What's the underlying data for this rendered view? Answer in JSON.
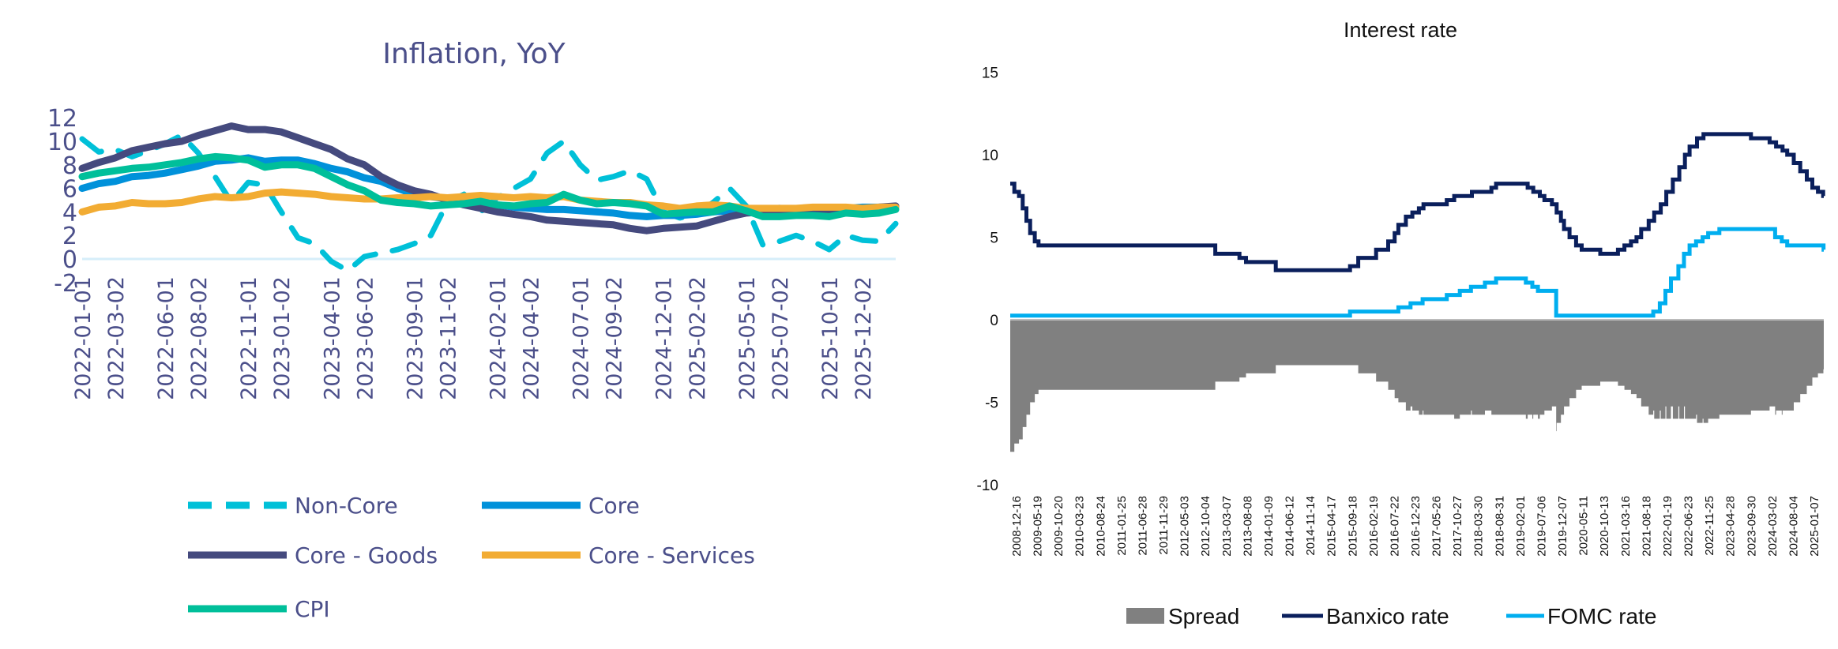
{
  "chart_data": [
    {
      "type": "line",
      "title": "Inflation, YoY",
      "xlabel": "",
      "ylabel": "",
      "ylim": [
        -2,
        12
      ],
      "yticks": [
        "12",
        "10",
        "8",
        "6",
        "4",
        "2",
        "0",
        "-2"
      ],
      "x_start": "2022-01",
      "x_tick_labels": [
        "2022-01-01",
        "2022-03-02",
        "2022-06-01",
        "2022-08-02",
        "2022-11-01",
        "2023-01-02",
        "2023-04-01",
        "2023-06-02",
        "2023-09-01",
        "2023-11-02",
        "2024-02-01",
        "2024-04-02",
        "2024-07-01",
        "2024-09-02",
        "2024-12-01",
        "2025-02-02",
        "2025-05-01",
        "2025-07-02",
        "2025-10-01",
        "2025-12-02"
      ],
      "legend_position": "bottom",
      "series": [
        {
          "name": "Non-Core",
          "color": "#00c0d8",
          "dashed": true,
          "values": [
            10.2,
            9.1,
            9.3,
            8.7,
            9.2,
            9.8,
            10.5,
            9.0,
            7.0,
            4.8,
            6.5,
            6.3,
            4.0,
            1.8,
            1.3,
            -0.2,
            -1.0,
            0.2,
            0.5,
            0.8,
            1.3,
            2.0,
            4.8,
            5.5,
            4.0,
            5.2,
            6.0,
            6.8,
            9.0,
            10.0,
            8.0,
            6.7,
            7.0,
            7.5,
            6.8,
            4.0,
            3.5,
            3.8,
            4.8,
            6.0,
            4.5,
            1.2,
            1.5,
            2.0,
            1.5,
            0.8,
            2.0,
            1.6,
            1.5,
            3.0
          ]
        },
        {
          "name": "Core",
          "color": "#0091da",
          "dashed": false,
          "values": [
            6.0,
            6.4,
            6.6,
            7.0,
            7.1,
            7.3,
            7.6,
            7.9,
            8.3,
            8.4,
            8.6,
            8.3,
            8.4,
            8.4,
            8.1,
            7.7,
            7.4,
            6.9,
            6.6,
            6.0,
            5.5,
            5.3,
            5.1,
            5.0,
            4.8,
            4.6,
            4.4,
            4.3,
            4.2,
            4.2,
            4.1,
            4.0,
            3.9,
            3.7,
            3.6,
            3.7,
            3.7,
            3.8,
            4.0,
            4.1,
            4.2,
            4.2,
            4.3,
            4.2,
            4.2,
            4.2,
            4.3,
            4.4,
            4.4,
            4.4
          ]
        },
        {
          "name": "Core - Goods",
          "color": "#454a7e",
          "dashed": false,
          "values": [
            7.7,
            8.2,
            8.6,
            9.2,
            9.5,
            9.8,
            10.0,
            10.5,
            10.9,
            11.3,
            11.0,
            11.0,
            10.8,
            10.3,
            9.8,
            9.3,
            8.5,
            8.0,
            7.0,
            6.3,
            5.8,
            5.5,
            5.0,
            4.6,
            4.3,
            4.0,
            3.8,
            3.6,
            3.3,
            3.2,
            3.1,
            3.0,
            2.9,
            2.6,
            2.4,
            2.6,
            2.7,
            2.8,
            3.2,
            3.6,
            3.9,
            4.0,
            4.0,
            4.0,
            4.0,
            4.0,
            4.1,
            4.2,
            4.4,
            4.5
          ]
        },
        {
          "name": "Core - Services",
          "color": "#f2ac33",
          "dashed": false,
          "values": [
            4.0,
            4.4,
            4.5,
            4.8,
            4.7,
            4.7,
            4.8,
            5.1,
            5.3,
            5.2,
            5.3,
            5.6,
            5.7,
            5.6,
            5.5,
            5.3,
            5.2,
            5.1,
            5.1,
            5.2,
            5.2,
            5.3,
            5.2,
            5.3,
            5.4,
            5.3,
            5.2,
            5.3,
            5.2,
            5.3,
            5.0,
            4.9,
            4.8,
            4.8,
            4.6,
            4.5,
            4.3,
            4.5,
            4.6,
            4.5,
            4.3,
            4.3,
            4.3,
            4.3,
            4.4,
            4.4,
            4.4,
            4.3,
            4.4,
            4.4
          ]
        },
        {
          "name": "CPI",
          "color": "#00bf9a",
          "dashed": false,
          "values": [
            7.0,
            7.3,
            7.5,
            7.7,
            7.8,
            8.0,
            8.2,
            8.5,
            8.7,
            8.6,
            8.4,
            7.8,
            8.0,
            8.0,
            7.7,
            7.0,
            6.3,
            5.8,
            5.0,
            4.8,
            4.7,
            4.5,
            4.6,
            4.7,
            4.9,
            4.6,
            4.5,
            4.7,
            4.8,
            5.5,
            5.0,
            4.7,
            4.8,
            4.7,
            4.5,
            3.8,
            3.9,
            4.0,
            4.0,
            4.5,
            4.1,
            3.6,
            3.6,
            3.7,
            3.7,
            3.6,
            3.9,
            3.8,
            3.9,
            4.2
          ]
        }
      ]
    },
    {
      "type": "line",
      "title": "Interest rate",
      "xlabel": "",
      "ylabel": "",
      "ylim": [
        -10,
        15
      ],
      "yticks": [
        "15",
        "10",
        "5",
        "0",
        "-5",
        "-10"
      ],
      "x_range": [
        "2008-12-16",
        "2025-09-20"
      ],
      "x_tick_labels": [
        "2008-12-16",
        "2009-05-19",
        "2009-10-20",
        "2010-03-23",
        "2010-08-24",
        "2011-01-25",
        "2011-06-28",
        "2011-11-29",
        "2012-05-03",
        "2012-10-04",
        "2013-03-07",
        "2013-08-08",
        "2014-01-09",
        "2014-06-12",
        "2014-11-14",
        "2015-04-17",
        "2015-09-18",
        "2016-02-19",
        "2016-07-22",
        "2016-12-23",
        "2017-05-26",
        "2017-10-27",
        "2018-03-30",
        "2018-08-31",
        "2019-02-01",
        "2019-07-06",
        "2019-12-07",
        "2020-05-11",
        "2020-10-13",
        "2021-03-16",
        "2021-08-18",
        "2022-01-19",
        "2022-06-23",
        "2022-11-25",
        "2023-04-28",
        "2023-09-30",
        "2024-03-02",
        "2024-08-04",
        "2025-01-07"
      ],
      "legend_position": "bottom",
      "legend": [
        "Spread",
        "Banxico rate",
        "FOMC rate"
      ],
      "colors": {
        "spread": "#808080",
        "banxico": "#0a1f5c",
        "fomc": "#00aeef"
      },
      "spread_definition": "FOMC rate - Banxico rate",
      "banxico_steps": [
        [
          "2008-12-16",
          8.25
        ],
        [
          "2009-01-16",
          7.75
        ],
        [
          "2009-02-20",
          7.5
        ],
        [
          "2009-03-20",
          6.75
        ],
        [
          "2009-04-17",
          6.0
        ],
        [
          "2009-05-15",
          5.25
        ],
        [
          "2009-06-19",
          4.75
        ],
        [
          "2009-07-17",
          4.5
        ],
        [
          "2013-03-08",
          4.0
        ],
        [
          "2013-09-06",
          3.75
        ],
        [
          "2013-10-25",
          3.5
        ],
        [
          "2014-06-06",
          3.0
        ],
        [
          "2015-12-17",
          3.25
        ],
        [
          "2016-02-17",
          3.75
        ],
        [
          "2016-06-30",
          4.25
        ],
        [
          "2016-09-29",
          4.75
        ],
        [
          "2016-11-17",
          5.25
        ],
        [
          "2016-12-15",
          5.75
        ],
        [
          "2017-02-09",
          6.25
        ],
        [
          "2017-03-30",
          6.5
        ],
        [
          "2017-05-18",
          6.75
        ],
        [
          "2017-06-22",
          7.0
        ],
        [
          "2017-12-14",
          7.25
        ],
        [
          "2018-02-08",
          7.5
        ],
        [
          "2018-06-21",
          7.75
        ],
        [
          "2018-11-15",
          8.0
        ],
        [
          "2018-12-20",
          8.25
        ],
        [
          "2019-08-15",
          8.0
        ],
        [
          "2019-09-26",
          7.75
        ],
        [
          "2019-11-14",
          7.5
        ],
        [
          "2019-12-19",
          7.25
        ],
        [
          "2020-02-13",
          7.0
        ],
        [
          "2020-03-20",
          6.5
        ],
        [
          "2020-04-21",
          6.0
        ],
        [
          "2020-05-14",
          5.5
        ],
        [
          "2020-06-25",
          5.0
        ],
        [
          "2020-08-13",
          4.5
        ],
        [
          "2020-09-24",
          4.25
        ],
        [
          "2021-02-11",
          4.0
        ],
        [
          "2021-06-24",
          4.25
        ],
        [
          "2021-08-12",
          4.5
        ],
        [
          "2021-09-30",
          4.75
        ],
        [
          "2021-11-11",
          5.0
        ],
        [
          "2021-12-16",
          5.5
        ],
        [
          "2022-02-10",
          6.0
        ],
        [
          "2022-03-24",
          6.5
        ],
        [
          "2022-05-12",
          7.0
        ],
        [
          "2022-06-23",
          7.75
        ],
        [
          "2022-08-11",
          8.5
        ],
        [
          "2022-09-29",
          9.25
        ],
        [
          "2022-11-10",
          10.0
        ],
        [
          "2022-12-15",
          10.5
        ],
        [
          "2023-02-09",
          11.0
        ],
        [
          "2023-03-30",
          11.25
        ],
        [
          "2024-03-21",
          11.0
        ],
        [
          "2024-08-08",
          10.75
        ],
        [
          "2024-09-26",
          10.5
        ],
        [
          "2024-11-14",
          10.25
        ],
        [
          "2024-12-19",
          10.0
        ],
        [
          "2025-02-06",
          9.5
        ],
        [
          "2025-03-27",
          9.0
        ],
        [
          "2025-05-15",
          8.5
        ],
        [
          "2025-06-26",
          8.0
        ],
        [
          "2025-08-07",
          7.75
        ],
        [
          "2025-09-15",
          7.5
        ]
      ],
      "fomc_steps": [
        [
          "2008-12-16",
          0.25
        ],
        [
          "2015-12-17",
          0.5
        ],
        [
          "2016-12-15",
          0.75
        ],
        [
          "2017-03-16",
          1.0
        ],
        [
          "2017-06-15",
          1.25
        ],
        [
          "2017-12-14",
          1.5
        ],
        [
          "2018-03-22",
          1.75
        ],
        [
          "2018-06-14",
          2.0
        ],
        [
          "2018-09-27",
          2.25
        ],
        [
          "2018-12-20",
          2.5
        ],
        [
          "2019-08-01",
          2.25
        ],
        [
          "2019-09-19",
          2.0
        ],
        [
          "2019-10-31",
          1.75
        ],
        [
          "2020-03-16",
          0.25
        ],
        [
          "2022-03-17",
          0.5
        ],
        [
          "2022-05-05",
          1.0
        ],
        [
          "2022-06-16",
          1.75
        ],
        [
          "2022-07-28",
          2.5
        ],
        [
          "2022-09-22",
          3.25
        ],
        [
          "2022-11-03",
          4.0
        ],
        [
          "2022-12-15",
          4.5
        ],
        [
          "2023-02-02",
          4.75
        ],
        [
          "2023-03-23",
          5.0
        ],
        [
          "2023-05-04",
          5.25
        ],
        [
          "2023-07-27",
          5.5
        ],
        [
          "2024-09-19",
          5.0
        ],
        [
          "2024-11-08",
          4.75
        ],
        [
          "2024-12-19",
          4.5
        ],
        [
          "2025-09-18",
          4.25
        ]
      ]
    }
  ]
}
